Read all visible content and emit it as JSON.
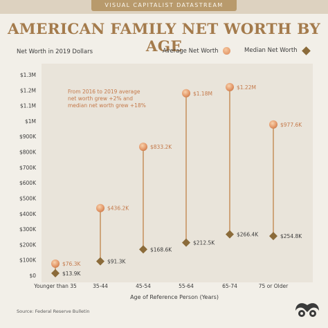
{
  "header": {
    "banner": "VISUAL CAPITALIST DATASTREAM"
  },
  "title": "AMERICAN FAMILY NET WORTH BY AGE",
  "subtitle": "Net Worth in 2019 Dollars",
  "source": "Source: Federal Reserve Bulletin",
  "colors": {
    "average": "#e49a6c",
    "median": "#8b6b3a",
    "title": "#a47b4c",
    "line": "#c89462",
    "plot_bg": "#e9e4da"
  },
  "chart_data": {
    "type": "scatter",
    "title": "AMERICAN FAMILY NET WORTH BY AGE",
    "xlabel": "Age of Reference Person (Years)",
    "ylabel": "",
    "categories": [
      "Younger than 35",
      "35-44",
      "45-54",
      "55-64",
      "65-74",
      "75 or Older"
    ],
    "ylim": [
      0,
      1300000
    ],
    "yticks": [
      "$0",
      "$100K",
      "$200K",
      "$300K",
      "$400K",
      "$500K",
      "$600K",
      "$700K",
      "$800K",
      "$900K",
      "$1M",
      "$1.1M",
      "$1.2M",
      "$1.3M"
    ],
    "series": [
      {
        "name": "Average Net Worth",
        "values": [
          76300,
          436200,
          833200,
          1180000,
          1220000,
          977600
        ],
        "labels": [
          "$76.3K",
          "$436.2K",
          "$833.2K",
          "$1.18M",
          "$1.22M",
          "$977.6K"
        ]
      },
      {
        "name": "Median Net Worth",
        "values": [
          13900,
          91300,
          168600,
          212500,
          266400,
          254800
        ],
        "labels": [
          "$13.9K",
          "$91.3K",
          "$168.6K",
          "$212.5K",
          "$266.4K",
          "$254.8K"
        ]
      }
    ],
    "annotation": [
      "From 2016 to 2019 average",
      "net worth grew +2% and",
      "median net worth grew +18%"
    ],
    "legend_position": "top-right",
    "grid": false
  }
}
